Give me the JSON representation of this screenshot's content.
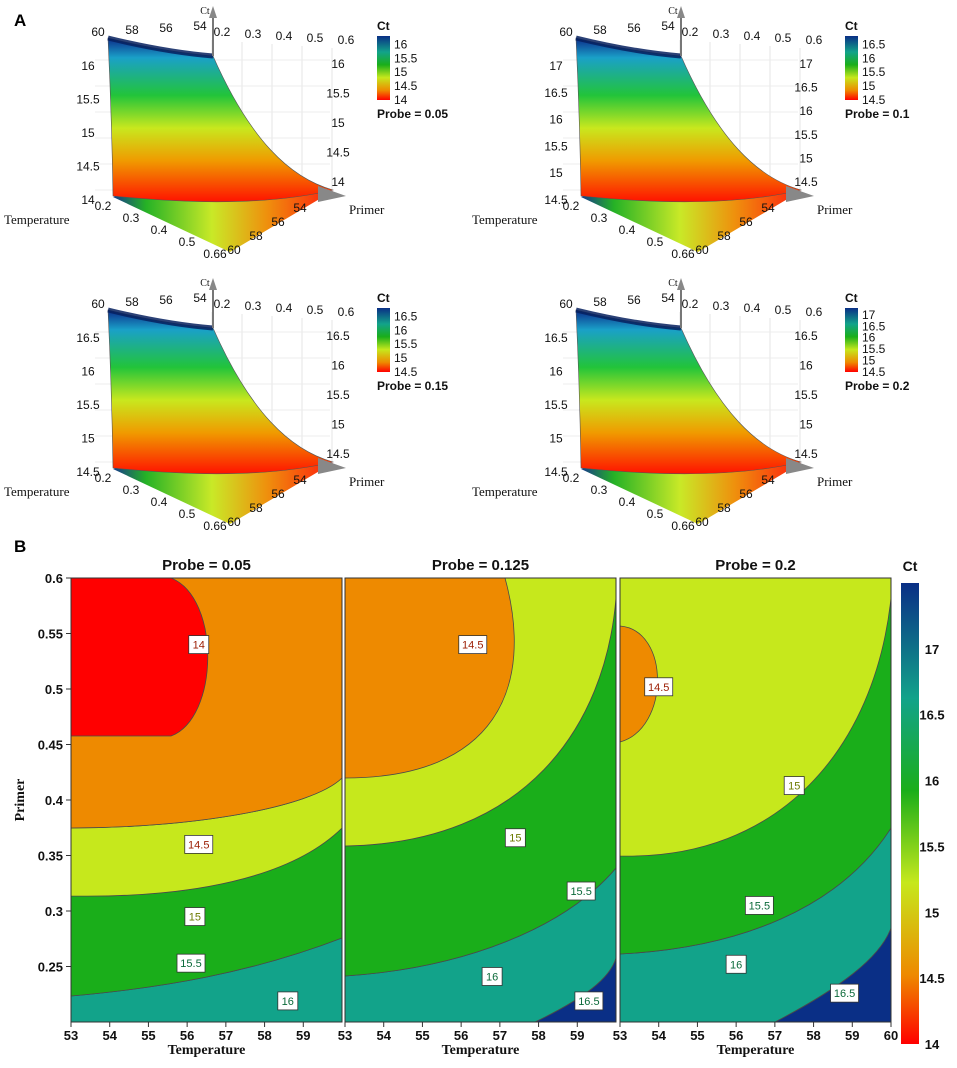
{
  "figure": {
    "panel_a_label": "A",
    "panel_b_label": "B"
  },
  "colors": {
    "scale": [
      "#ff0000",
      "#ee8a00",
      "#c6e81c",
      "#1aae1a",
      "#12a38a",
      "#0a2f86"
    ]
  },
  "chart_data": [
    {
      "type": "surface3d",
      "panel": "A",
      "subtitle": "Probe = 0.05",
      "zlabel": "Ct",
      "xlabel": "Temperature",
      "ylabel": "Primer",
      "primer_ticks": [
        "0.2",
        "0.3",
        "0.4",
        "0.5",
        "0.6"
      ],
      "temperature_ticks": [
        "60",
        "58",
        "56",
        "54"
      ],
      "z_ticks": [
        "16",
        "15.5",
        "15",
        "14.5",
        "14"
      ],
      "floor_primer_ticks": [
        "0.2",
        "0.3",
        "0.4",
        "0.5",
        "0.66"
      ],
      "floor_temp_ticks": [
        "54",
        "56",
        "58",
        "60"
      ],
      "colorbar": {
        "label": "Ct",
        "ticks": [
          "16",
          "15.5",
          "15",
          "14.5",
          "14"
        ],
        "range": [
          14,
          16.3
        ]
      }
    },
    {
      "type": "surface3d",
      "panel": "A",
      "subtitle": "Probe = 0.1",
      "zlabel": "Ct",
      "xlabel": "Temperature",
      "ylabel": "Primer",
      "primer_ticks": [
        "0.2",
        "0.3",
        "0.4",
        "0.5",
        "0.6"
      ],
      "temperature_ticks": [
        "60",
        "58",
        "56",
        "54"
      ],
      "z_ticks": [
        "17",
        "16.5",
        "16",
        "15.5",
        "15",
        "14.5"
      ],
      "floor_primer_ticks": [
        "0.2",
        "0.3",
        "0.4",
        "0.5",
        "0.66"
      ],
      "floor_temp_ticks": [
        "54",
        "56",
        "58",
        "60"
      ],
      "colorbar": {
        "label": "Ct",
        "ticks": [
          "16.5",
          "16",
          "15.5",
          "15",
          "14.5"
        ],
        "range": [
          14.5,
          16.8
        ]
      }
    },
    {
      "type": "surface3d",
      "panel": "A",
      "subtitle": "Probe = 0.15",
      "zlabel": "Ct",
      "xlabel": "Temperature",
      "ylabel": "Primer",
      "primer_ticks": [
        "0.2",
        "0.3",
        "0.4",
        "0.5",
        "0.6"
      ],
      "temperature_ticks": [
        "60",
        "58",
        "56",
        "54"
      ],
      "z_ticks": [
        "16.5",
        "16",
        "15.5",
        "15",
        "14.5"
      ],
      "floor_primer_ticks": [
        "0.2",
        "0.3",
        "0.4",
        "0.5",
        "0.66"
      ],
      "floor_temp_ticks": [
        "54",
        "56",
        "58",
        "60"
      ],
      "colorbar": {
        "label": "Ct",
        "ticks": [
          "16.5",
          "16",
          "15.5",
          "15",
          "14.5"
        ],
        "range": [
          14.5,
          16.8
        ]
      }
    },
    {
      "type": "surface3d",
      "panel": "A",
      "subtitle": "Probe = 0.2",
      "zlabel": "Ct",
      "xlabel": "Temperature",
      "ylabel": "Primer",
      "primer_ticks": [
        "0.2",
        "0.3",
        "0.4",
        "0.5",
        "0.6"
      ],
      "temperature_ticks": [
        "60",
        "58",
        "56",
        "54"
      ],
      "z_ticks": [
        "16.5",
        "16",
        "15.5",
        "15",
        "14.5"
      ],
      "floor_primer_ticks": [
        "0.2",
        "0.3",
        "0.4",
        "0.5",
        "0.66"
      ],
      "floor_temp_ticks": [
        "54",
        "56",
        "58",
        "60"
      ],
      "colorbar": {
        "label": "Ct",
        "ticks": [
          "17",
          "16.5",
          "16",
          "15.5",
          "15",
          "14.5"
        ],
        "range": [
          14.5,
          17.3
        ]
      }
    },
    {
      "type": "contour",
      "panel": "B",
      "title": "Probe = 0.05",
      "xlabel": "Temperature",
      "ylabel": "Primer",
      "xlim": [
        53,
        60
      ],
      "ylim": [
        0.2,
        0.6
      ],
      "x_ticks": [
        "53",
        "54",
        "55",
        "56",
        "57",
        "58",
        "59"
      ],
      "y_ticks": [
        "0.6",
        "0.55",
        "0.5",
        "0.45",
        "0.4",
        "0.35",
        "0.3",
        "0.25"
      ],
      "levels": [
        {
          "label": "14",
          "temperature": 56.3,
          "primer": 0.54
        },
        {
          "label": "14.5",
          "temperature": 56.3,
          "primer": 0.36
        },
        {
          "label": "15",
          "temperature": 56.2,
          "primer": 0.295
        },
        {
          "label": "15.5",
          "temperature": 56.1,
          "primer": 0.253
        },
        {
          "label": "16",
          "temperature": 58.6,
          "primer": 0.219
        }
      ]
    },
    {
      "type": "contour",
      "panel": "B",
      "title": "Probe = 0.125",
      "xlabel": "Temperature",
      "xlim": [
        53,
        60
      ],
      "ylim": [
        0.2,
        0.6
      ],
      "x_ticks": [
        "53",
        "54",
        "55",
        "56",
        "57",
        "58",
        "59"
      ],
      "levels": [
        {
          "label": "14.5",
          "temperature": 56.3,
          "primer": 0.54
        },
        {
          "label": "15",
          "temperature": 57.4,
          "primer": 0.366
        },
        {
          "label": "15.5",
          "temperature": 59.1,
          "primer": 0.318
        },
        {
          "label": "16",
          "temperature": 56.8,
          "primer": 0.241
        },
        {
          "label": "16.5",
          "temperature": 59.3,
          "primer": 0.219
        }
      ]
    },
    {
      "type": "contour",
      "panel": "B",
      "title": "Probe = 0.2",
      "xlabel": "Temperature",
      "xlim": [
        53,
        60
      ],
      "ylim": [
        0.2,
        0.6
      ],
      "x_ticks": [
        "53",
        "54",
        "55",
        "56",
        "57",
        "58",
        "59",
        "60"
      ],
      "levels": [
        {
          "label": "14.5",
          "temperature": 54.0,
          "primer": 0.502
        },
        {
          "label": "15",
          "temperature": 57.5,
          "primer": 0.413
        },
        {
          "label": "15.5",
          "temperature": 56.6,
          "primer": 0.305
        },
        {
          "label": "16",
          "temperature": 56.0,
          "primer": 0.252
        },
        {
          "label": "16.5",
          "temperature": 58.8,
          "primer": 0.226
        }
      ]
    },
    {
      "type": "colorbar",
      "panel": "B",
      "label": "Ct",
      "range": [
        14,
        17.5
      ],
      "ticks": [
        "17",
        "16.5",
        "16",
        "15.5",
        "15",
        "14.5",
        "14"
      ]
    }
  ]
}
